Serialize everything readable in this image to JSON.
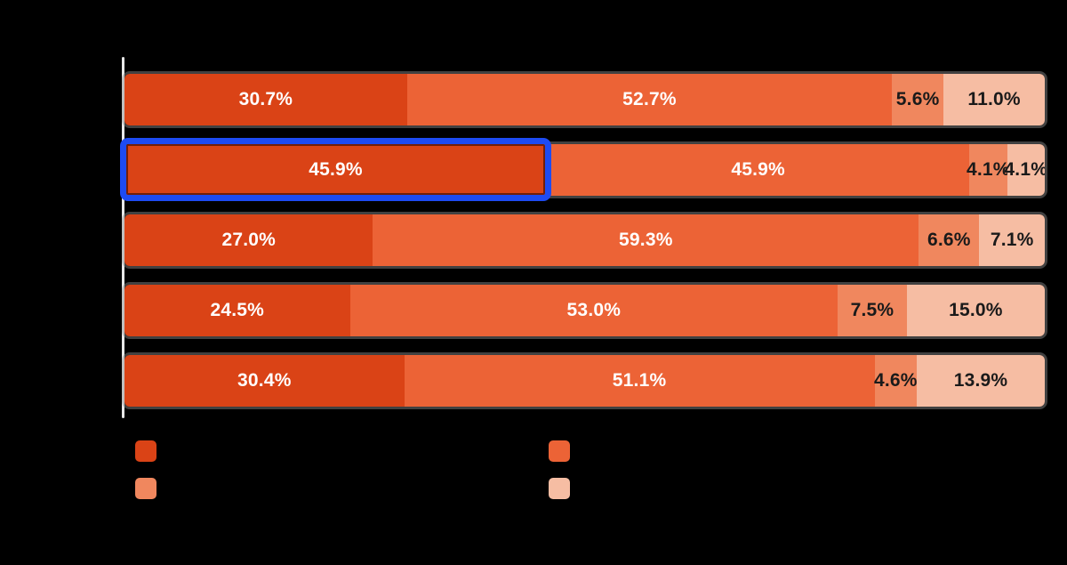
{
  "background_color": "#000000",
  "axis": {
    "line_color": "#E8E8E8"
  },
  "chart_data": {
    "type": "bar",
    "orientation": "horizontal",
    "stacked": true,
    "xlim": [
      0,
      100
    ],
    "value_suffix": "%",
    "categories": [
      "",
      "",
      "",
      "",
      ""
    ],
    "series": [
      {
        "name": "segment-1-dark-orange",
        "color": "#DA4316",
        "label_color": "#FFFFFF",
        "values": [
          30.7,
          45.9,
          27.0,
          24.5,
          30.4
        ]
      },
      {
        "name": "segment-2-orange",
        "color": "#EC6336",
        "label_color": "#FFFFFF",
        "values": [
          52.7,
          45.9,
          59.3,
          53.0,
          51.1
        ]
      },
      {
        "name": "segment-3-salmon",
        "color": "#F0875E",
        "label_color": "#1A1A1A",
        "values": [
          5.6,
          4.1,
          6.6,
          7.5,
          4.6
        ]
      },
      {
        "name": "segment-4-light-peach",
        "color": "#F6BDA3",
        "label_color": "#1A1A1A",
        "values": [
          11.0,
          4.1,
          7.1,
          15.0,
          13.9
        ]
      }
    ],
    "displayed_labels": [
      [
        "30.7%",
        "52.7%",
        "5.6%",
        "11.0%"
      ],
      [
        "45.9%",
        "45.9%",
        "4.1%",
        "4.1%"
      ],
      [
        "27.0%",
        "59.3%",
        "6.6%",
        "7.1%"
      ],
      [
        "24.5%",
        "53.0%",
        "7.5%",
        "15.0%"
      ],
      [
        "30.4%",
        "51.1%",
        "4.6%",
        "13.9%"
      ]
    ],
    "highlight": {
      "row_index": 1,
      "segment_index": 0,
      "border_color": "#1E4BF2"
    }
  },
  "legend": {
    "layout": "2x2",
    "items": [
      {
        "name": "legend-item-1",
        "color": "#DA4316",
        "label": ""
      },
      {
        "name": "legend-item-2",
        "color": "#EC6336",
        "label": ""
      },
      {
        "name": "legend-item-3",
        "color": "#F0875E",
        "label": ""
      },
      {
        "name": "legend-item-4",
        "color": "#F6BDA3",
        "label": ""
      }
    ]
  }
}
